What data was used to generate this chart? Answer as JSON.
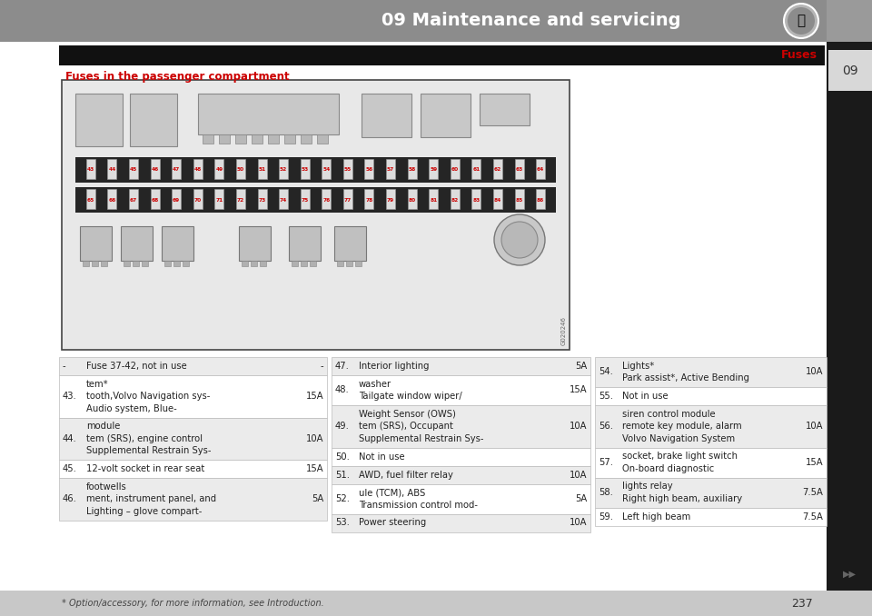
{
  "page_title": "09 Maintenance and servicing",
  "section_label": "Fuses",
  "chapter_num": "09",
  "subsection_title": "Fuses in the passenger compartment",
  "image_code": "G020246",
  "bg_color": "#ffffff",
  "header_bg": "#8c8c8c",
  "header_text_color": "#ffffff",
  "sidebar_bg": "#1a1a1a",
  "tab_bg": "#d8d8d8",
  "tab_text": "#333333",
  "banner_bg": "#111111",
  "fuse_num_color": "#cc0000",
  "footnote_bg": "#c8c8c8",
  "footnote": "* Option/accessory, for more information, see Introduction.",
  "page_num": "237",
  "fuse_row1": [
    "43",
    "44",
    "45",
    "46",
    "47",
    "48",
    "49",
    "50",
    "51",
    "52",
    "53",
    "54",
    "55",
    "56",
    "57",
    "58",
    "59",
    "60",
    "61",
    "62",
    "63",
    "64"
  ],
  "fuse_row2": [
    "65",
    "66",
    "67",
    "68",
    "69",
    "70",
    "71",
    "72",
    "73",
    "74",
    "75",
    "76",
    "77",
    "78",
    "79",
    "80",
    "81",
    "82",
    "83",
    "84",
    "85",
    "86"
  ],
  "col1_rows": [
    [
      "-",
      "Fuse 37-42, not in use",
      "-"
    ],
    [
      "43.",
      "Audio system, Blue-\ntooth,Volvo Navigation sys-\ntem*",
      "15A"
    ],
    [
      "44.",
      "Supplemental Restrain Sys-\ntem (SRS), engine control\nmodule",
      "10A"
    ],
    [
      "45.",
      "12-volt socket in rear seat",
      "15A"
    ],
    [
      "46.",
      "Lighting – glove compart-\nment, instrument panel, and\nfootwells",
      "5A"
    ]
  ],
  "col2_rows": [
    [
      "47.",
      "Interior lighting",
      "5A"
    ],
    [
      "48.",
      "Tailgate window wiper/\nwasher",
      "15A"
    ],
    [
      "49.",
      "Supplemental Restrain Sys-\ntem (SRS), Occupant\nWeight Sensor (OWS)",
      "10A"
    ],
    [
      "50.",
      "Not in use",
      ""
    ],
    [
      "51.",
      "AWD, fuel filter relay",
      "10A"
    ],
    [
      "52.",
      "Transmission control mod-\nule (TCM), ABS",
      "5A"
    ],
    [
      "53.",
      "Power steering",
      "10A"
    ]
  ],
  "col3_rows": [
    [
      "54.",
      "Park assist*, Active Bending\nLights*",
      "10A"
    ],
    [
      "55.",
      "Not in use",
      ""
    ],
    [
      "56.",
      "Volvo Navigation System\nremote key module, alarm\nsiren control module",
      "10A"
    ],
    [
      "57.",
      "On-board diagnostic\nsocket, brake light switch",
      "15A"
    ],
    [
      "58.",
      "Right high beam, auxiliary\nlights relay",
      "7.5A"
    ],
    [
      "59.",
      "Left high beam",
      "7.5A"
    ]
  ]
}
